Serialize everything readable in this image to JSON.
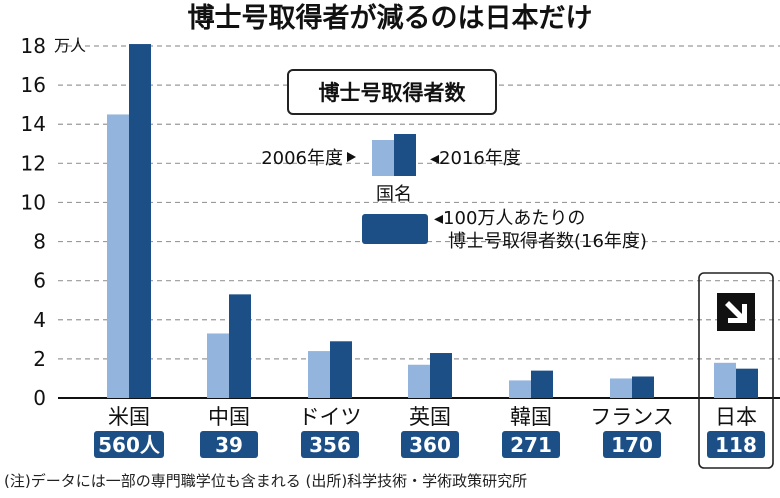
{
  "title": "博士号取得者が減るのは日本だけ",
  "note": "(注)データには一部の専門職学位も含まれる (出所)科学技術・学術政策研究所",
  "legend": {
    "title": "博士号取得者数",
    "label_2006": "2006年度",
    "label_2016": "◂2016年度",
    "country_label": "国名",
    "per_million_line1": "◂100万人あたりの",
    "per_million_line2": "博士号取得者数(16年度)"
  },
  "colors": {
    "series_2006": "#93b5dd",
    "series_2016": "#1c4f86",
    "badge": "#1c4f86",
    "grid": "#9a9a9a"
  },
  "chart_data": {
    "type": "bar",
    "title": "博士号取得者が減るのは日本だけ",
    "unit_label": "万人",
    "categories": [
      "米国",
      "中国",
      "ドイツ",
      "英国",
      "韓国",
      "フランス",
      "日本"
    ],
    "series": [
      {
        "name": "2006年度",
        "values": [
          14.5,
          3.3,
          2.4,
          1.7,
          0.9,
          1.0,
          1.8
        ]
      },
      {
        "name": "2016年度",
        "values": [
          18.1,
          5.3,
          2.9,
          2.3,
          1.4,
          1.1,
          1.5
        ]
      }
    ],
    "per_million_2016": [
      "560人",
      "39",
      "356",
      "360",
      "271",
      "170",
      "118"
    ],
    "ylim": [
      0,
      18
    ],
    "yticks": [
      "0",
      "2",
      "4",
      "6",
      "8",
      "10",
      "12",
      "14",
      "16",
      "18"
    ],
    "highlight_category": "日本",
    "highlight_icon": "down-right-arrow-icon"
  }
}
